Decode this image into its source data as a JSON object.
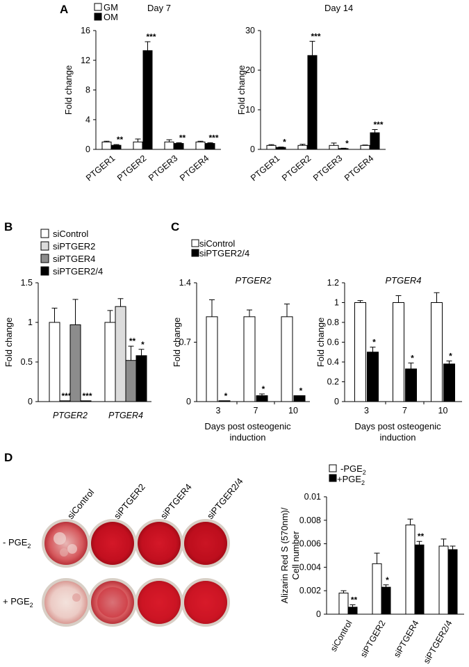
{
  "panels": {
    "A": {
      "letter": "A",
      "legend": {
        "gm": "GM",
        "om": "OM"
      },
      "charts": [
        {
          "key": "a1",
          "subtitle": "Day 7"
        },
        {
          "key": "a2",
          "subtitle": "Day 14"
        }
      ]
    },
    "B": {
      "letter": "B"
    },
    "C": {
      "letter": "C",
      "legend": {
        "control": "siControl",
        "treated": "siPTGER2/4"
      }
    },
    "D": {
      "letter": "D",
      "plate_columns": [
        "siControl",
        "siPTGER2",
        "siPTGER4",
        "siPTGER2/4"
      ],
      "row_labels": {
        "minus": "- PGE",
        "plus": "+ PGE",
        "sub": "2"
      },
      "legend": {
        "minus": "-PGE",
        "plus": "+PGE",
        "sub": "2"
      }
    }
  },
  "colors": {
    "white_bar": "#ffffff",
    "black_bar": "#000000",
    "light_gray": "#dcdcdc",
    "dark_gray": "#8c8c8c",
    "alizarin_red": "#cc1020",
    "plate_rim": "#d8cfc6"
  },
  "chart_data": [
    {
      "id": "a1",
      "type": "bar",
      "title": "Day 7",
      "ylabel": "Fold change",
      "categories": [
        "PTGER1",
        "PTGER2",
        "PTGER3",
        "PTGER4"
      ],
      "ylim": [
        0,
        16
      ],
      "yticks": [
        "0",
        "4",
        "8",
        "12",
        "16"
      ],
      "series": [
        {
          "name": "GM",
          "values": [
            1.0,
            1.0,
            1.0,
            1.0
          ],
          "errors": [
            0.1,
            0.4,
            0.3,
            0.1
          ],
          "stars": [
            "",
            "",
            "",
            ""
          ]
        },
        {
          "name": "OM",
          "values": [
            0.55,
            13.3,
            0.8,
            0.8
          ],
          "errors": [
            0.1,
            1.2,
            0.1,
            0.1
          ],
          "stars": [
            "**",
            "***",
            "**",
            "***"
          ]
        }
      ]
    },
    {
      "id": "a2",
      "type": "bar",
      "title": "Day 14",
      "ylabel": "Fold change",
      "categories": [
        "PTGER1",
        "PTGER2",
        "PTGER3",
        "PTGER4"
      ],
      "ylim": [
        0,
        30
      ],
      "yticks": [
        "0",
        "10",
        "20",
        "30"
      ],
      "series": [
        {
          "name": "GM",
          "values": [
            1.0,
            1.0,
            1.0,
            1.0
          ],
          "errors": [
            0.2,
            0.3,
            0.6,
            0.1
          ],
          "stars": [
            "",
            "",
            "",
            ""
          ]
        },
        {
          "name": "OM",
          "values": [
            0.5,
            23.7,
            0.2,
            4.2
          ],
          "errors": [
            0.1,
            3.6,
            0.1,
            0.8
          ],
          "stars": [
            "*",
            "***",
            "*",
            "***"
          ]
        }
      ]
    },
    {
      "id": "b",
      "type": "bar",
      "ylabel": "Fold  change",
      "categories": [
        "PTGER2",
        "PTGER4"
      ],
      "category_style": "italic",
      "ylim": [
        0,
        1.5
      ],
      "yticks": [
        "0",
        "0.5",
        "1",
        "1.5"
      ],
      "series": [
        {
          "name": "siControl",
          "values": [
            1.0,
            1.0
          ],
          "errors": [
            0.18,
            0.15
          ],
          "stars": [
            "",
            ""
          ]
        },
        {
          "name": "siPTGER2",
          "values": [
            0.01,
            1.2
          ],
          "errors": [
            0.0,
            0.1
          ],
          "stars": [
            "***",
            ""
          ]
        },
        {
          "name": "siPTGER4",
          "values": [
            0.97,
            0.52
          ],
          "errors": [
            0.32,
            0.18
          ],
          "stars": [
            "",
            "**"
          ]
        },
        {
          "name": "siPTGER2/4",
          "values": [
            0.01,
            0.58
          ],
          "errors": [
            0.0,
            0.08
          ],
          "stars": [
            "***",
            "*"
          ]
        }
      ]
    },
    {
      "id": "c1",
      "type": "bar",
      "title": "PTGER2",
      "ylabel": "Fold change",
      "xlabel": "Days post osteogenic induction",
      "categories": [
        "3",
        "7",
        "10"
      ],
      "ylim": [
        0,
        1.4
      ],
      "yticks": [
        "0",
        "0.7",
        "1.4"
      ],
      "series": [
        {
          "name": "siControl",
          "values": [
            1.0,
            1.0,
            1.0
          ],
          "errors": [
            0.2,
            0.08,
            0.15
          ],
          "stars": [
            "",
            "",
            ""
          ]
        },
        {
          "name": "siPTGER2/4",
          "values": [
            0.01,
            0.07,
            0.07
          ],
          "errors": [
            0.0,
            0.02,
            0.0
          ],
          "stars": [
            "*",
            "*",
            "*"
          ]
        }
      ]
    },
    {
      "id": "c2",
      "type": "bar",
      "title": "PTGER4",
      "ylabel": "Fold change",
      "xlabel": "Days post osteogenic induction",
      "categories": [
        "3",
        "7",
        "10"
      ],
      "ylim": [
        0,
        1.2
      ],
      "yticks": [
        "0",
        "0.2",
        "0.4",
        "0.6",
        "0.8",
        "1",
        "1.2"
      ],
      "series": [
        {
          "name": "siControl",
          "values": [
            1.0,
            1.0,
            1.0
          ],
          "errors": [
            0.02,
            0.07,
            0.1
          ],
          "stars": [
            "",
            "",
            ""
          ]
        },
        {
          "name": "siPTGER2/4",
          "values": [
            0.5,
            0.33,
            0.38
          ],
          "errors": [
            0.05,
            0.06,
            0.03
          ],
          "stars": [
            "*",
            "*",
            "*"
          ]
        }
      ]
    },
    {
      "id": "d",
      "type": "bar",
      "ylabel": "Alizarin Red S (570nm)/ Cell number",
      "categories": [
        "siControl",
        "siPTGER2",
        "siPTGER4",
        "siPTGER2/4"
      ],
      "category_rotation": -60,
      "ylim": [
        0,
        0.01
      ],
      "yticks": [
        "0",
        "0.002",
        "0.004",
        "0.006",
        "0.008",
        "0.01"
      ],
      "series": [
        {
          "name": "-PGE2",
          "values": [
            0.0018,
            0.0043,
            0.0076,
            0.0058
          ],
          "errors": [
            0.0002,
            0.0009,
            0.0005,
            0.0006
          ],
          "stars": [
            "",
            "",
            "",
            ""
          ]
        },
        {
          "name": "+PGE2",
          "values": [
            0.0006,
            0.0023,
            0.0059,
            0.0055
          ],
          "errors": [
            0.0002,
            0.0002,
            0.0003,
            0.0003
          ],
          "stars": [
            "**",
            "*",
            "**",
            ""
          ]
        }
      ]
    }
  ]
}
